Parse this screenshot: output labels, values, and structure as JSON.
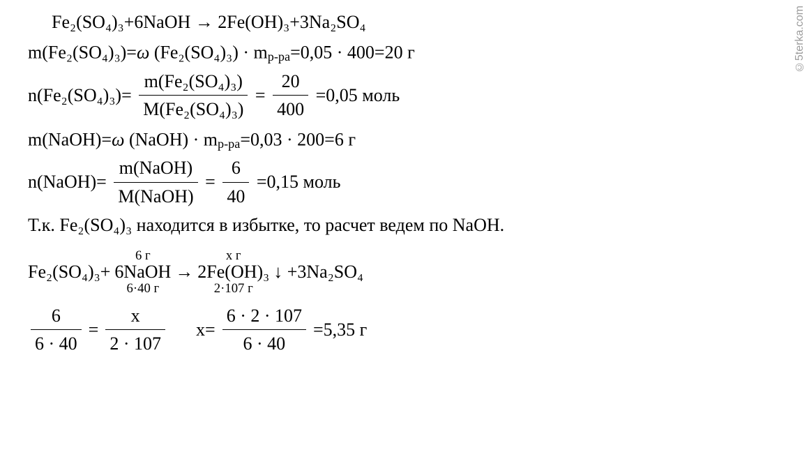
{
  "watermark": "©5terka.com",
  "eq1": "Fe₂(SO₄)₃+6NaOH → 2Fe(OH)₃+3Na₂SO₄",
  "line2_lhs": "m(Fe₂(SO₄)₃)=",
  "line2_omega": "ω",
  "line2_rest": " (Fe₂(SO₄)₃) · m",
  "line2_sub": "р-ра",
  "line2_tail": "=0,05 · 400=20 г",
  "line3_lhs": "n(Fe₂(SO₄)₃)=",
  "line3_num": "m(Fe₂(SO₄)₃)",
  "line3_den": "M(Fe₂(SO₄)₃)",
  "line3_eq": " = ",
  "line3_num2": "20",
  "line3_den2": "400",
  "line3_tail": " =0,05 моль",
  "line4_lhs": "m(NaOH)=",
  "line4_omega": "ω",
  "line4_rest": " (NaOH) · m",
  "line4_sub": "р-ра",
  "line4_tail": "=0,03 · 200=6 г",
  "line5_lhs": "n(NaOH)=",
  "line5_num": "m(NaOH)",
  "line5_den": "M(NaOH)",
  "line5_num2": "6",
  "line5_den2": "40",
  "line5_tail": " =0,15 моль",
  "line6": "Т.к. Fe₂(SO₄)₃ находится в избытке, то расчет ведем по NaOH.",
  "eq2_a": "Fe₂(SO₄)₃+",
  "eq2_b_over": "6 г",
  "eq2_b_main": "6NaOH",
  "eq2_b_under": "6·40 г",
  "eq2_arrow": "  →  ",
  "eq2_c_over": "x г",
  "eq2_c_main": "2Fe(OH)₃",
  "eq2_c_under": "2·107 г",
  "eq2_d": " ↓ +3Na₂SO₄",
  "final_num1": "6",
  "final_den1": "6 · 40",
  "final_eq": " = ",
  "final_num2": "x",
  "final_den2": "2 · 107",
  "final_xlabel": "x=",
  "final_num3": "6 · 2 · 107",
  "final_den3": "6 · 40",
  "final_tail": " =5,35 г"
}
